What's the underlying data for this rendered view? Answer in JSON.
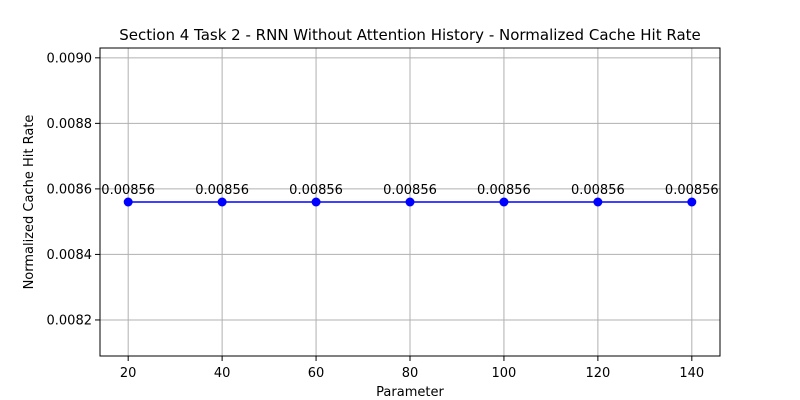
{
  "chart_data": {
    "type": "line",
    "title": "Section 4 Task 2 - RNN Without Attention History - Normalized Cache Hit Rate",
    "xlabel": "Parameter",
    "ylabel": "Normalized Cache Hit Rate",
    "x": [
      20,
      40,
      60,
      80,
      100,
      120,
      140
    ],
    "series": [
      {
        "values": [
          0.00856,
          0.00856,
          0.00856,
          0.00856,
          0.00856,
          0.00856,
          0.00856
        ],
        "data_labels": [
          "0.00856",
          "0.00856",
          "0.00856",
          "0.00856",
          "0.00856",
          "0.00856",
          "0.00856"
        ],
        "color": "#0000ff",
        "marker": "circle"
      }
    ],
    "xlim": [
      14,
      146
    ],
    "ylim": [
      0.00809,
      0.00903
    ],
    "xticks": [
      20,
      40,
      60,
      80,
      100,
      120,
      140
    ],
    "xtick_labels": [
      "20",
      "40",
      "60",
      "80",
      "100",
      "120",
      "140"
    ],
    "yticks": [
      0.0082,
      0.0084,
      0.0086,
      0.0088,
      0.009
    ],
    "ytick_labels": [
      "0.0082",
      "0.0084",
      "0.0086",
      "0.0088",
      "0.0090"
    ],
    "grid": true
  }
}
